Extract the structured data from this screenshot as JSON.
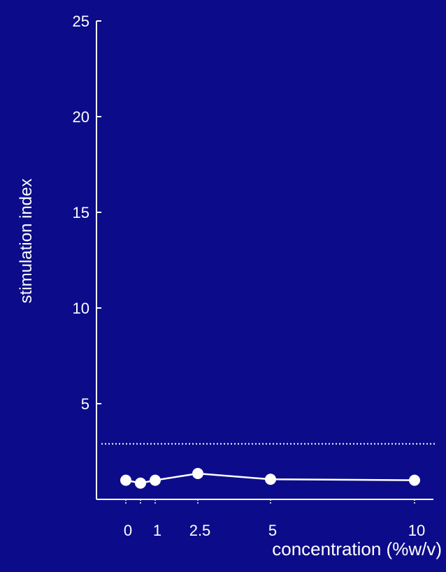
{
  "chart_data": {
    "type": "line",
    "xlabel": "concentration (%w/v)",
    "ylabel": "stimulation index",
    "ylim": [
      0,
      25
    ],
    "yticks": [
      5,
      10,
      15,
      20,
      25
    ],
    "x_tick_labels": [
      "0",
      "1",
      "2.5",
      "5",
      "10"
    ],
    "series": [
      {
        "x": [
          0,
          0.5,
          1,
          2.5,
          5,
          10
        ],
        "y": [
          1.0,
          0.85,
          1.0,
          1.35,
          1.05,
          1.0
        ]
      }
    ],
    "threshold": {
      "y": 2.9,
      "style": "dotted"
    },
    "grid": false,
    "colors": {
      "background": "#0c0c8a",
      "foreground": "#ffffff"
    }
  }
}
